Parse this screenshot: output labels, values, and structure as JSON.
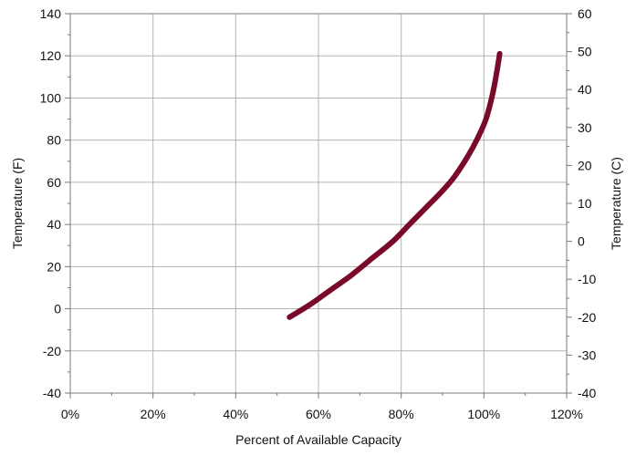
{
  "chart_data": {
    "type": "line",
    "xlabel": "Percent of Available Capacity",
    "ylabel": "Temperature (F)",
    "y2label": "Temperature (C)",
    "xlim": [
      0,
      120
    ],
    "ylim": [
      -40,
      140
    ],
    "y2lim": [
      -40,
      60
    ],
    "x_ticks": [
      0,
      20,
      40,
      60,
      80,
      100,
      120
    ],
    "x_tick_labels": [
      "0%",
      "20%",
      "40%",
      "60%",
      "80%",
      "100%",
      "120%"
    ],
    "y_ticks": [
      -40,
      -20,
      0,
      20,
      40,
      60,
      80,
      100,
      120,
      140
    ],
    "y_tick_labels": [
      "-40",
      "-20",
      "0",
      "20",
      "40",
      "60",
      "80",
      "100",
      "120",
      "140"
    ],
    "y2_ticks": [
      -40,
      -30,
      -20,
      -10,
      0,
      10,
      20,
      30,
      40,
      50,
      60
    ],
    "y2_tick_labels": [
      "-40",
      "-30",
      "-20",
      "-10",
      "0",
      "10",
      "20",
      "30",
      "40",
      "50",
      "60"
    ],
    "grid": true,
    "series": [
      {
        "color": "#7a0a2a",
        "x": [
          53,
          58,
          63,
          68,
          73,
          78,
          82,
          86,
          90,
          93,
          96,
          98.5,
          100.5,
          102,
          103,
          103.8
        ],
        "y": [
          -4,
          2,
          9,
          16,
          24,
          32,
          40,
          48,
          56,
          63,
          72,
          81,
          90,
          101,
          111,
          121
        ]
      }
    ]
  }
}
